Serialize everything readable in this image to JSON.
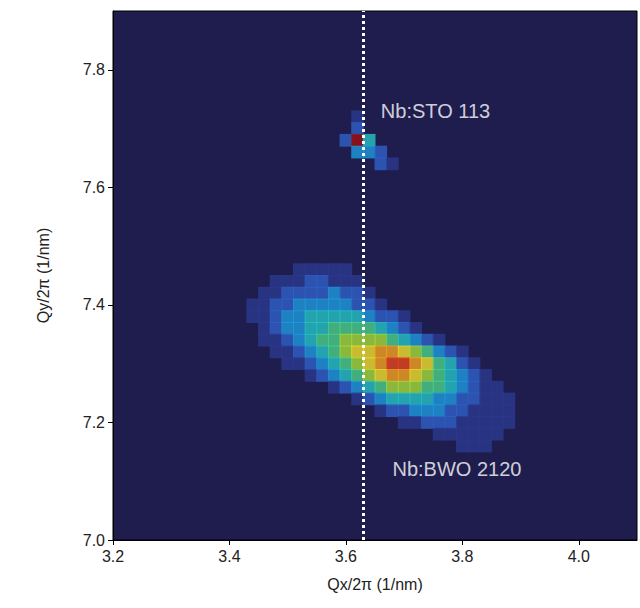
{
  "chart_data": {
    "type": "heatmap",
    "xlabel": "Qx/2π (1/nm)",
    "ylabel": "Qy/2π (1/nm)",
    "xlim": [
      3.2,
      4.1
    ],
    "ylim": [
      7.0,
      7.9
    ],
    "xticks": [
      3.2,
      3.4,
      3.6,
      3.8,
      {
        "value": 4,
        "label": "4.0"
      }
    ],
    "yticks": [
      {
        "value": 7,
        "label": "7.0"
      },
      7.2,
      7.4,
      7.6,
      7.8
    ],
    "grid": false,
    "reference_line": {
      "x": 3.625,
      "line_style": "dotted",
      "color": "#ffffff"
    },
    "annotations": [
      {
        "text": "Nb:STO 113",
        "x": 3.66,
        "y": 7.73
      },
      {
        "text": "Nb:BWO 2120",
        "x": 3.68,
        "y": 7.12
      }
    ],
    "cells": [
      [
        3.62,
        7.72,
        1
      ],
      [
        3.62,
        7.7,
        2
      ],
      [
        3.6,
        7.68,
        2
      ],
      [
        3.62,
        7.68,
        10
      ],
      [
        3.64,
        7.68,
        4
      ],
      [
        3.62,
        7.66,
        3
      ],
      [
        3.64,
        7.66,
        3
      ],
      [
        3.66,
        7.66,
        2
      ],
      [
        3.66,
        7.64,
        2
      ],
      [
        3.68,
        7.64,
        1
      ],
      [
        3.52,
        7.46,
        1
      ],
      [
        3.54,
        7.46,
        1
      ],
      [
        3.56,
        7.46,
        1
      ],
      [
        3.58,
        7.46,
        1
      ],
      [
        3.6,
        7.46,
        1
      ],
      [
        3.48,
        7.44,
        1
      ],
      [
        3.5,
        7.44,
        1
      ],
      [
        3.52,
        7.44,
        1
      ],
      [
        3.54,
        7.44,
        2
      ],
      [
        3.56,
        7.44,
        2
      ],
      [
        3.58,
        7.44,
        1
      ],
      [
        3.6,
        7.44,
        1
      ],
      [
        3.62,
        7.44,
        1
      ],
      [
        3.46,
        7.42,
        1
      ],
      [
        3.48,
        7.42,
        1
      ],
      [
        3.5,
        7.42,
        2
      ],
      [
        3.52,
        7.42,
        2
      ],
      [
        3.54,
        7.42,
        2
      ],
      [
        3.56,
        7.42,
        2
      ],
      [
        3.58,
        7.42,
        3
      ],
      [
        3.6,
        7.42,
        2
      ],
      [
        3.62,
        7.42,
        2
      ],
      [
        3.64,
        7.42,
        1
      ],
      [
        3.44,
        7.4,
        1
      ],
      [
        3.46,
        7.4,
        1
      ],
      [
        3.48,
        7.4,
        2
      ],
      [
        3.5,
        7.4,
        2
      ],
      [
        3.52,
        7.4,
        3
      ],
      [
        3.54,
        7.4,
        3
      ],
      [
        3.56,
        7.4,
        3
      ],
      [
        3.58,
        7.4,
        3
      ],
      [
        3.6,
        7.4,
        3
      ],
      [
        3.62,
        7.4,
        2
      ],
      [
        3.64,
        7.4,
        2
      ],
      [
        3.66,
        7.4,
        1
      ],
      [
        3.44,
        7.38,
        1
      ],
      [
        3.46,
        7.38,
        1
      ],
      [
        3.48,
        7.38,
        2
      ],
      [
        3.5,
        7.38,
        3
      ],
      [
        3.52,
        7.38,
        3
      ],
      [
        3.54,
        7.38,
        4
      ],
      [
        3.56,
        7.38,
        4
      ],
      [
        3.58,
        7.38,
        4
      ],
      [
        3.6,
        7.38,
        4
      ],
      [
        3.62,
        7.38,
        4
      ],
      [
        3.64,
        7.38,
        3
      ],
      [
        3.66,
        7.38,
        2
      ],
      [
        3.68,
        7.38,
        2
      ],
      [
        3.7,
        7.38,
        1
      ],
      [
        3.46,
        7.36,
        1
      ],
      [
        3.48,
        7.36,
        2
      ],
      [
        3.5,
        7.36,
        3
      ],
      [
        3.52,
        7.36,
        3
      ],
      [
        3.54,
        7.36,
        4
      ],
      [
        3.56,
        7.36,
        4
      ],
      [
        3.58,
        7.36,
        5
      ],
      [
        3.6,
        7.36,
        5
      ],
      [
        3.62,
        7.36,
        5
      ],
      [
        3.64,
        7.36,
        5
      ],
      [
        3.66,
        7.36,
        4
      ],
      [
        3.68,
        7.36,
        3
      ],
      [
        3.7,
        7.36,
        2
      ],
      [
        3.72,
        7.36,
        1
      ],
      [
        3.46,
        7.34,
        1
      ],
      [
        3.48,
        7.34,
        1
      ],
      [
        3.5,
        7.34,
        2
      ],
      [
        3.52,
        7.34,
        3
      ],
      [
        3.54,
        7.34,
        4
      ],
      [
        3.56,
        7.34,
        5
      ],
      [
        3.58,
        7.34,
        5
      ],
      [
        3.6,
        7.34,
        6
      ],
      [
        3.62,
        7.34,
        6
      ],
      [
        3.64,
        7.34,
        6
      ],
      [
        3.66,
        7.34,
        6
      ],
      [
        3.68,
        7.34,
        5
      ],
      [
        3.7,
        7.34,
        4
      ],
      [
        3.72,
        7.34,
        3
      ],
      [
        3.74,
        7.34,
        2
      ],
      [
        3.76,
        7.34,
        1
      ],
      [
        3.48,
        7.32,
        1
      ],
      [
        3.5,
        7.32,
        1
      ],
      [
        3.52,
        7.32,
        2
      ],
      [
        3.54,
        7.32,
        3
      ],
      [
        3.56,
        7.32,
        4
      ],
      [
        3.58,
        7.32,
        5
      ],
      [
        3.6,
        7.32,
        6
      ],
      [
        3.62,
        7.32,
        7
      ],
      [
        3.64,
        7.32,
        7
      ],
      [
        3.66,
        7.32,
        8
      ],
      [
        3.68,
        7.32,
        8
      ],
      [
        3.7,
        7.32,
        7
      ],
      [
        3.72,
        7.32,
        6
      ],
      [
        3.74,
        7.32,
        5
      ],
      [
        3.76,
        7.32,
        3
      ],
      [
        3.78,
        7.32,
        2
      ],
      [
        3.8,
        7.32,
        1
      ],
      [
        3.5,
        7.3,
        1
      ],
      [
        3.52,
        7.3,
        1
      ],
      [
        3.54,
        7.3,
        2
      ],
      [
        3.56,
        7.3,
        3
      ],
      [
        3.58,
        7.3,
        4
      ],
      [
        3.6,
        7.3,
        5
      ],
      [
        3.62,
        7.3,
        6
      ],
      [
        3.64,
        7.3,
        7
      ],
      [
        3.66,
        7.3,
        8
      ],
      [
        3.68,
        7.3,
        9
      ],
      [
        3.7,
        7.3,
        9
      ],
      [
        3.72,
        7.3,
        8
      ],
      [
        3.74,
        7.3,
        7
      ],
      [
        3.76,
        7.3,
        5
      ],
      [
        3.78,
        7.3,
        4
      ],
      [
        3.8,
        7.3,
        2
      ],
      [
        3.82,
        7.3,
        1
      ],
      [
        3.54,
        7.28,
        1
      ],
      [
        3.56,
        7.28,
        2
      ],
      [
        3.58,
        7.28,
        3
      ],
      [
        3.6,
        7.28,
        4
      ],
      [
        3.62,
        7.28,
        5
      ],
      [
        3.64,
        7.28,
        6
      ],
      [
        3.66,
        7.28,
        7
      ],
      [
        3.68,
        7.28,
        8
      ],
      [
        3.7,
        7.28,
        8
      ],
      [
        3.72,
        7.28,
        7
      ],
      [
        3.74,
        7.28,
        6
      ],
      [
        3.76,
        7.28,
        5
      ],
      [
        3.78,
        7.28,
        4
      ],
      [
        3.8,
        7.28,
        3
      ],
      [
        3.82,
        7.28,
        2
      ],
      [
        3.84,
        7.28,
        1
      ],
      [
        3.58,
        7.26,
        1
      ],
      [
        3.6,
        7.26,
        2
      ],
      [
        3.62,
        7.26,
        3
      ],
      [
        3.64,
        7.26,
        4
      ],
      [
        3.66,
        7.26,
        5
      ],
      [
        3.68,
        7.26,
        6
      ],
      [
        3.7,
        7.26,
        6
      ],
      [
        3.72,
        7.26,
        6
      ],
      [
        3.74,
        7.26,
        5
      ],
      [
        3.76,
        7.26,
        5
      ],
      [
        3.78,
        7.26,
        4
      ],
      [
        3.8,
        7.26,
        3
      ],
      [
        3.82,
        7.26,
        2
      ],
      [
        3.84,
        7.26,
        1
      ],
      [
        3.86,
        7.26,
        1
      ],
      [
        3.62,
        7.24,
        1
      ],
      [
        3.64,
        7.24,
        2
      ],
      [
        3.66,
        7.24,
        3
      ],
      [
        3.68,
        7.24,
        4
      ],
      [
        3.7,
        7.24,
        4
      ],
      [
        3.72,
        7.24,
        4
      ],
      [
        3.74,
        7.24,
        4
      ],
      [
        3.76,
        7.24,
        3
      ],
      [
        3.78,
        7.24,
        3
      ],
      [
        3.8,
        7.24,
        2
      ],
      [
        3.82,
        7.24,
        2
      ],
      [
        3.84,
        7.24,
        1
      ],
      [
        3.86,
        7.24,
        1
      ],
      [
        3.88,
        7.24,
        1
      ],
      [
        3.66,
        7.22,
        1
      ],
      [
        3.68,
        7.22,
        2
      ],
      [
        3.7,
        7.22,
        2
      ],
      [
        3.72,
        7.22,
        3
      ],
      [
        3.74,
        7.22,
        3
      ],
      [
        3.76,
        7.22,
        3
      ],
      [
        3.78,
        7.22,
        2
      ],
      [
        3.8,
        7.22,
        2
      ],
      [
        3.82,
        7.22,
        1
      ],
      [
        3.84,
        7.22,
        1
      ],
      [
        3.86,
        7.22,
        1
      ],
      [
        3.88,
        7.22,
        1
      ],
      [
        3.7,
        7.2,
        1
      ],
      [
        3.72,
        7.2,
        1
      ],
      [
        3.74,
        7.2,
        2
      ],
      [
        3.76,
        7.2,
        2
      ],
      [
        3.78,
        7.2,
        2
      ],
      [
        3.8,
        7.2,
        1
      ],
      [
        3.82,
        7.2,
        1
      ],
      [
        3.84,
        7.2,
        1
      ],
      [
        3.86,
        7.2,
        1
      ],
      [
        3.88,
        7.2,
        1
      ],
      [
        3.76,
        7.18,
        1
      ],
      [
        3.78,
        7.18,
        1
      ],
      [
        3.8,
        7.18,
        1
      ],
      [
        3.82,
        7.18,
        1
      ],
      [
        3.84,
        7.18,
        1
      ],
      [
        3.86,
        7.18,
        1
      ],
      [
        3.8,
        7.16,
        1
      ],
      [
        3.82,
        7.16,
        1
      ],
      [
        3.84,
        7.16,
        1
      ]
    ]
  }
}
